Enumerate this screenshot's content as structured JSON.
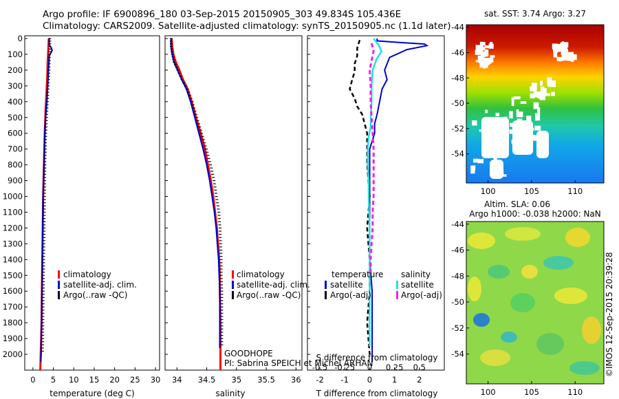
{
  "header": {
    "line1": "Argo profile: IF 6900896_180 03-Sep-2015 20150905_303 49.834S 105.436E",
    "line2": "Climatology: CARS2009. Satellite-adjusted climatology: synTS_20150905.nc (1.1d later)"
  },
  "colors": {
    "climatology": "#ff0000",
    "satellite": "#0000cc",
    "argo": "#000000",
    "sal_satellite": "#22e0e0",
    "sal_argo": "#ee22ee"
  },
  "chart_data": [
    {
      "id": "temperature",
      "type": "line",
      "xlabel": "temperature (deg C)",
      "ylabel": "",
      "xlim": [
        -2,
        31
      ],
      "ylim": [
        0,
        2100
      ],
      "xticks": [
        "0",
        "5",
        "10",
        "15",
        "20",
        "25",
        "30"
      ],
      "xtick_values": [
        0,
        5,
        10,
        15,
        20,
        25,
        30
      ],
      "yticks": [
        "0",
        "100",
        "200",
        "300",
        "400",
        "500",
        "600",
        "700",
        "800",
        "900",
        "1000",
        "1100",
        "1200",
        "1300",
        "1400",
        "1500",
        "1600",
        "1700",
        "1800",
        "1900",
        "2000"
      ],
      "ytick_values": [
        0,
        100,
        200,
        300,
        400,
        500,
        600,
        700,
        800,
        900,
        1000,
        1100,
        1200,
        1300,
        1400,
        1500,
        1600,
        1700,
        1800,
        1900,
        2000
      ],
      "legend": [
        "climatology",
        "satellite-adj. clim.",
        "Argo(..raw -QC)"
      ],
      "series": [
        {
          "name": "climatology",
          "points": [
            [
              3.9,
              0
            ],
            [
              3.8,
              50
            ],
            [
              3.7,
              100
            ],
            [
              3.6,
              150
            ],
            [
              3.5,
              250
            ],
            [
              3.3,
              350
            ],
            [
              3.1,
              450
            ],
            [
              2.9,
              600
            ],
            [
              2.7,
              800
            ],
            [
              2.5,
              1000
            ],
            [
              2.4,
              1200
            ],
            [
              2.3,
              1400
            ],
            [
              2.2,
              1600
            ],
            [
              2.1,
              1800
            ],
            [
              1.9,
              2000
            ],
            [
              1.8,
              2100
            ]
          ]
        },
        {
          "name": "satellite-adj. clim.",
          "points": [
            [
              4.0,
              0
            ],
            [
              4.0,
              40
            ],
            [
              4.5,
              60
            ],
            [
              4.7,
              75
            ],
            [
              4.0,
              110
            ],
            [
              3.8,
              200
            ],
            [
              3.6,
              300
            ],
            [
              3.4,
              400
            ],
            [
              3.1,
              500
            ],
            [
              2.9,
              600
            ],
            [
              2.7,
              800
            ],
            [
              2.5,
              1000
            ],
            [
              2.4,
              1200
            ],
            [
              2.3,
              1400
            ],
            [
              2.2,
              1600
            ],
            [
              2.1,
              1800
            ],
            [
              2.0,
              2000
            ],
            [
              1.9,
              2050
            ]
          ]
        },
        {
          "name": "Argo(..raw -QC)",
          "points": [
            [
              3.8,
              0
            ],
            [
              3.8,
              50
            ],
            [
              3.7,
              100
            ],
            [
              3.6,
              200
            ],
            [
              3.4,
              300
            ],
            [
              3.2,
              400
            ],
            [
              3.0,
              500
            ],
            [
              2.8,
              600
            ],
            [
              2.6,
              800
            ],
            [
              2.5,
              1000
            ],
            [
              2.4,
              1200
            ],
            [
              2.3,
              1400
            ],
            [
              2.2,
              1600
            ],
            [
              2.1,
              1800
            ],
            [
              2.0,
              2000
            ]
          ]
        }
      ]
    },
    {
      "id": "salinity",
      "type": "line",
      "xlabel": "salinity",
      "ylabel": "",
      "xlim": [
        33.8,
        36.1
      ],
      "ylim": [
        0,
        2100
      ],
      "xticks": [
        "34",
        "34.5",
        "35",
        "35.5",
        "36"
      ],
      "xtick_values": [
        34,
        34.5,
        35,
        35.5,
        36
      ],
      "legend": [
        "climatology",
        "satellite-adj. clim.",
        "Argo(..raw -QC)"
      ],
      "annotations": [
        "GOODHOPE",
        "PI: Sabrina SPEICH et Michel ARHAN"
      ],
      "series": [
        {
          "name": "climatology",
          "points": [
            [
              33.91,
              0
            ],
            [
              33.92,
              50
            ],
            [
              33.94,
              100
            ],
            [
              33.98,
              150
            ],
            [
              34.04,
              200
            ],
            [
              34.1,
              260
            ],
            [
              34.18,
              320
            ],
            [
              34.25,
              400
            ],
            [
              34.32,
              500
            ],
            [
              34.4,
              600
            ],
            [
              34.47,
              700
            ],
            [
              34.52,
              800
            ],
            [
              34.57,
              900
            ],
            [
              34.61,
              1000
            ],
            [
              34.64,
              1100
            ],
            [
              34.67,
              1200
            ],
            [
              34.69,
              1300
            ],
            [
              34.71,
              1400
            ],
            [
              34.72,
              1500
            ],
            [
              34.72,
              1600
            ],
            [
              34.73,
              1800
            ],
            [
              34.73,
              2000
            ],
            [
              34.73,
              2100
            ]
          ]
        },
        {
          "name": "satellite-adj. clim.",
          "points": [
            [
              33.9,
              0
            ],
            [
              33.9,
              50
            ],
            [
              33.92,
              100
            ],
            [
              33.95,
              150
            ],
            [
              34.01,
              200
            ],
            [
              34.08,
              260
            ],
            [
              34.16,
              320
            ],
            [
              34.23,
              400
            ],
            [
              34.3,
              500
            ],
            [
              34.37,
              600
            ],
            [
              34.44,
              700
            ],
            [
              34.5,
              800
            ],
            [
              34.55,
              900
            ],
            [
              34.59,
              1000
            ],
            [
              34.63,
              1100
            ],
            [
              34.66,
              1200
            ],
            [
              34.68,
              1300
            ],
            [
              34.7,
              1400
            ],
            [
              34.71,
              1500
            ],
            [
              34.72,
              1600
            ],
            [
              34.72,
              1800
            ],
            [
              34.72,
              1900
            ],
            [
              34.72,
              1960
            ]
          ]
        },
        {
          "name": "Argo(..raw -QC)",
          "points": [
            [
              33.88,
              0
            ],
            [
              33.88,
              50
            ],
            [
              33.9,
              100
            ],
            [
              33.93,
              150
            ],
            [
              33.99,
              200
            ],
            [
              34.06,
              260
            ],
            [
              34.15,
              320
            ],
            [
              34.23,
              400
            ],
            [
              34.31,
              500
            ],
            [
              34.39,
              600
            ],
            [
              34.47,
              700
            ],
            [
              34.54,
              800
            ],
            [
              34.6,
              900
            ],
            [
              34.64,
              1000
            ],
            [
              34.68,
              1100
            ],
            [
              34.7,
              1200
            ],
            [
              34.71,
              1300
            ],
            [
              34.72,
              1400
            ],
            [
              34.72,
              1500
            ],
            [
              34.73,
              1600
            ],
            [
              34.73,
              1800
            ],
            [
              34.73,
              1960
            ]
          ]
        }
      ]
    },
    {
      "id": "difference",
      "type": "line",
      "xlabel": "T difference from climatology",
      "x2label": "S difference from climatology",
      "xlim": [
        -2.5,
        3
      ],
      "ylim": [
        0,
        2100
      ],
      "xticks": [
        "-2",
        "-1",
        "0",
        "1",
        "2"
      ],
      "xtick_values": [
        -2,
        -1,
        0,
        1,
        2
      ],
      "x2ticks": [
        "-0.5",
        "-0.25",
        "0",
        "0.25",
        "0.5"
      ],
      "x2tick_values": [
        -0.5,
        -0.25,
        0,
        0.25,
        0.5
      ],
      "legend_titles": [
        "temperature",
        "salinity"
      ],
      "legend": [
        "satellite",
        "Argo(-adj)",
        "satellite",
        "Argo(-adj)"
      ],
      "series": [
        {
          "name": "T satellite",
          "points": [
            [
              0.3,
              0
            ],
            [
              0.3,
              15
            ],
            [
              1.2,
              25
            ],
            [
              2.2,
              35
            ],
            [
              2.3,
              45
            ],
            [
              1.5,
              70
            ],
            [
              0.8,
              120
            ],
            [
              0.6,
              200
            ],
            [
              0.7,
              260
            ],
            [
              0.5,
              320
            ],
            [
              0.4,
              400
            ],
            [
              0.3,
              480
            ],
            [
              0.2,
              540
            ],
            [
              0.2,
              600
            ],
            [
              0.0,
              700
            ],
            [
              0.0,
              800
            ],
            [
              0.0,
              900
            ],
            [
              0.0,
              1000
            ],
            [
              0.0,
              1200
            ],
            [
              0.0,
              1400
            ],
            [
              0.1,
              1600
            ],
            [
              0.1,
              1800
            ],
            [
              0.1,
              2000
            ],
            [
              0.1,
              2050
            ]
          ]
        },
        {
          "name": "T Argo(-adj)",
          "points": [
            [
              -0.4,
              10
            ],
            [
              -0.5,
              60
            ],
            [
              -0.5,
              110
            ],
            [
              -0.6,
              160
            ],
            [
              -0.6,
              210
            ],
            [
              -0.7,
              260
            ],
            [
              -0.8,
              320
            ],
            [
              -0.6,
              380
            ],
            [
              -0.5,
              430
            ],
            [
              -0.3,
              480
            ],
            [
              -0.2,
              540
            ],
            [
              -0.1,
              600
            ],
            [
              -0.1,
              700
            ],
            [
              -0.1,
              800
            ],
            [
              0.0,
              1000
            ],
            [
              -0.1,
              1200
            ],
            [
              0.0,
              1400
            ],
            [
              0.0,
              1600
            ],
            [
              -0.1,
              1800
            ],
            [
              0.0,
              2000
            ]
          ]
        },
        {
          "name": "S satellite",
          "points": [
            [
              0.04,
              0
            ],
            [
              0.09,
              40
            ],
            [
              0.12,
              80
            ],
            [
              0.07,
              130
            ],
            [
              0.03,
              200
            ],
            [
              0.02,
              300
            ],
            [
              0.02,
              400
            ],
            [
              0.01,
              500
            ],
            [
              0.01,
              560
            ],
            [
              -0.01,
              620
            ],
            [
              -0.02,
              700
            ],
            [
              -0.02,
              800
            ],
            [
              -0.01,
              900
            ],
            [
              -0.01,
              1000
            ],
            [
              0.0,
              1200
            ],
            [
              0.0,
              1400
            ],
            [
              0.0,
              1600
            ],
            [
              0.0,
              1800
            ],
            [
              0.0,
              1950
            ]
          ]
        },
        {
          "name": "S Argo(-adj)",
          "points": [
            [
              0.02,
              30
            ],
            [
              0.04,
              80
            ],
            [
              0.02,
              140
            ],
            [
              0.0,
              200
            ],
            [
              0.01,
              300
            ],
            [
              0.01,
              400
            ],
            [
              0.02,
              500
            ],
            [
              0.03,
              600
            ],
            [
              0.04,
              700
            ],
            [
              0.04,
              800
            ],
            [
              0.04,
              900
            ],
            [
              0.04,
              1000
            ],
            [
              0.03,
              1100
            ],
            [
              0.03,
              1200
            ],
            [
              0.02,
              1300
            ],
            [
              0.01,
              1400
            ],
            [
              0.01,
              1500
            ]
          ]
        }
      ]
    }
  ],
  "maps": {
    "sst": {
      "title": "sat. SST: 3.74 Argo: 3.27",
      "xticks": [
        "100",
        "105",
        "110"
      ],
      "xtick_values": [
        100,
        105,
        110
      ],
      "yticks": [
        "-44",
        "-46",
        "-48",
        "-50",
        "-52",
        "-54"
      ],
      "ytick_values": [
        -44,
        -46,
        -48,
        -50,
        -52,
        -54
      ],
      "xlim": [
        97.5,
        113.3
      ],
      "ylim": [
        -56.3,
        -43.8
      ]
    },
    "sla": {
      "title1": "Altim. SLA: 0.06",
      "title2": "Argo h1000: -0.038 h2000: NaN",
      "xticks": [
        "100",
        "105",
        "110"
      ],
      "xtick_values": [
        100,
        105,
        110
      ],
      "yticks": [
        "-44",
        "-46",
        "-48",
        "-50",
        "-52",
        "-54"
      ],
      "ytick_values": [
        -44,
        -46,
        -48,
        -50,
        -52,
        -54
      ],
      "xlim": [
        97.5,
        113.3
      ],
      "ylim": [
        -56.3,
        -43.8
      ]
    },
    "stamp": "©IMOS 12-Sep-2015 20:39:28"
  }
}
